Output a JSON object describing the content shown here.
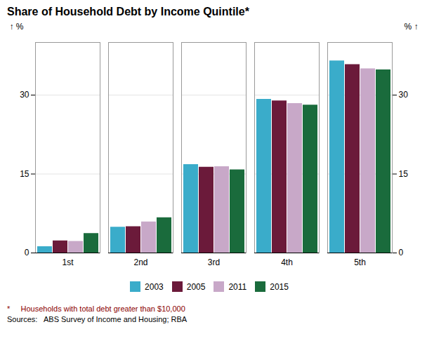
{
  "chart_data": {
    "type": "bar",
    "title": "Share of Household Debt by Income Quintile*",
    "categories": [
      "1st",
      "2nd",
      "3rd",
      "4th",
      "5th"
    ],
    "series": [
      {
        "name": "2003",
        "color": "#3AACCA",
        "values": [
          1.2,
          4.9,
          16.8,
          29.2,
          36.5
        ]
      },
      {
        "name": "2005",
        "color": "#6B1A3A",
        "values": [
          2.3,
          5.0,
          16.3,
          28.9,
          35.8
        ]
      },
      {
        "name": "2011",
        "color": "#C8A8C8",
        "values": [
          2.2,
          5.9,
          16.4,
          28.4,
          35.0
        ]
      },
      {
        "name": "2015",
        "color": "#1A6B3C",
        "values": [
          3.7,
          6.7,
          15.8,
          28.1,
          34.8
        ]
      }
    ],
    "ylim": [
      0,
      40
    ],
    "yticks": [
      0,
      15,
      30
    ],
    "ylabel": "%",
    "y2lim": [
      0,
      40
    ],
    "y2ticks": [
      0,
      15,
      30
    ],
    "y2label": "%",
    "grid": true,
    "legend": "bottom",
    "annotations": [
      {
        "text": "*     Households with total debt greater than $10,000",
        "color": "#8B0000"
      },
      {
        "text": "Sources:   ABS Survey of Income and Housing; RBA",
        "color": "#000000"
      }
    ]
  }
}
